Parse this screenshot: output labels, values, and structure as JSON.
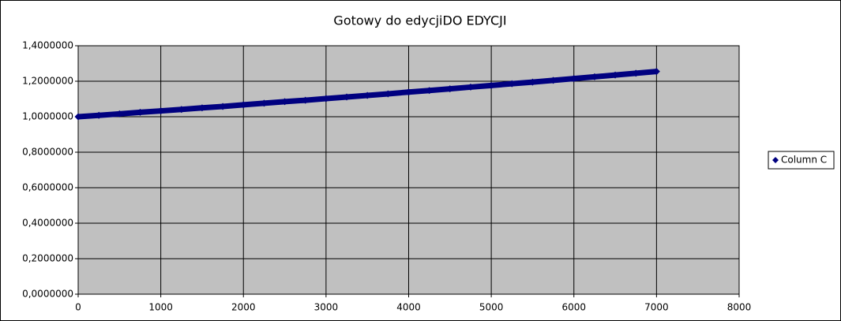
{
  "chart_data": {
    "type": "scatter",
    "title": "Gotowy do edycjiDO EDYCJI",
    "x": [
      0,
      250,
      500,
      750,
      1000,
      1250,
      1500,
      1750,
      2000,
      2250,
      2500,
      2750,
      3000,
      3250,
      3500,
      3750,
      4000,
      4250,
      4500,
      4750,
      5000,
      5250,
      5500,
      5750,
      6000,
      6250,
      6500,
      6750,
      7000
    ],
    "series": [
      {
        "name": "Column C",
        "color": "#000080",
        "values": [
          1.0,
          1.008,
          1.016,
          1.025,
          1.033,
          1.041,
          1.05,
          1.058,
          1.067,
          1.076,
          1.085,
          1.093,
          1.102,
          1.111,
          1.12,
          1.129,
          1.139,
          1.148,
          1.157,
          1.167,
          1.176,
          1.186,
          1.195,
          1.205,
          1.215,
          1.225,
          1.235,
          1.245,
          1.255
        ]
      }
    ],
    "xlim": [
      0,
      8000
    ],
    "xticks": [
      0,
      1000,
      2000,
      3000,
      4000,
      5000,
      6000,
      7000,
      8000
    ],
    "ylim": [
      0,
      1.4
    ],
    "yticks": [
      {
        "value": 0,
        "label": "0,0000000"
      },
      {
        "value": 0.2,
        "label": "0,2000000"
      },
      {
        "value": 0.4,
        "label": "0,4000000"
      },
      {
        "value": 0.6,
        "label": "0,6000000"
      },
      {
        "value": 0.8,
        "label": "0,8000000"
      },
      {
        "value": 1.0,
        "label": "1,0000000"
      },
      {
        "value": 1.2,
        "label": "1,2000000"
      },
      {
        "value": 1.4,
        "label": "1,4000000"
      }
    ],
    "grid": true,
    "legend": "right",
    "plot_background": "#c0c0c0"
  }
}
